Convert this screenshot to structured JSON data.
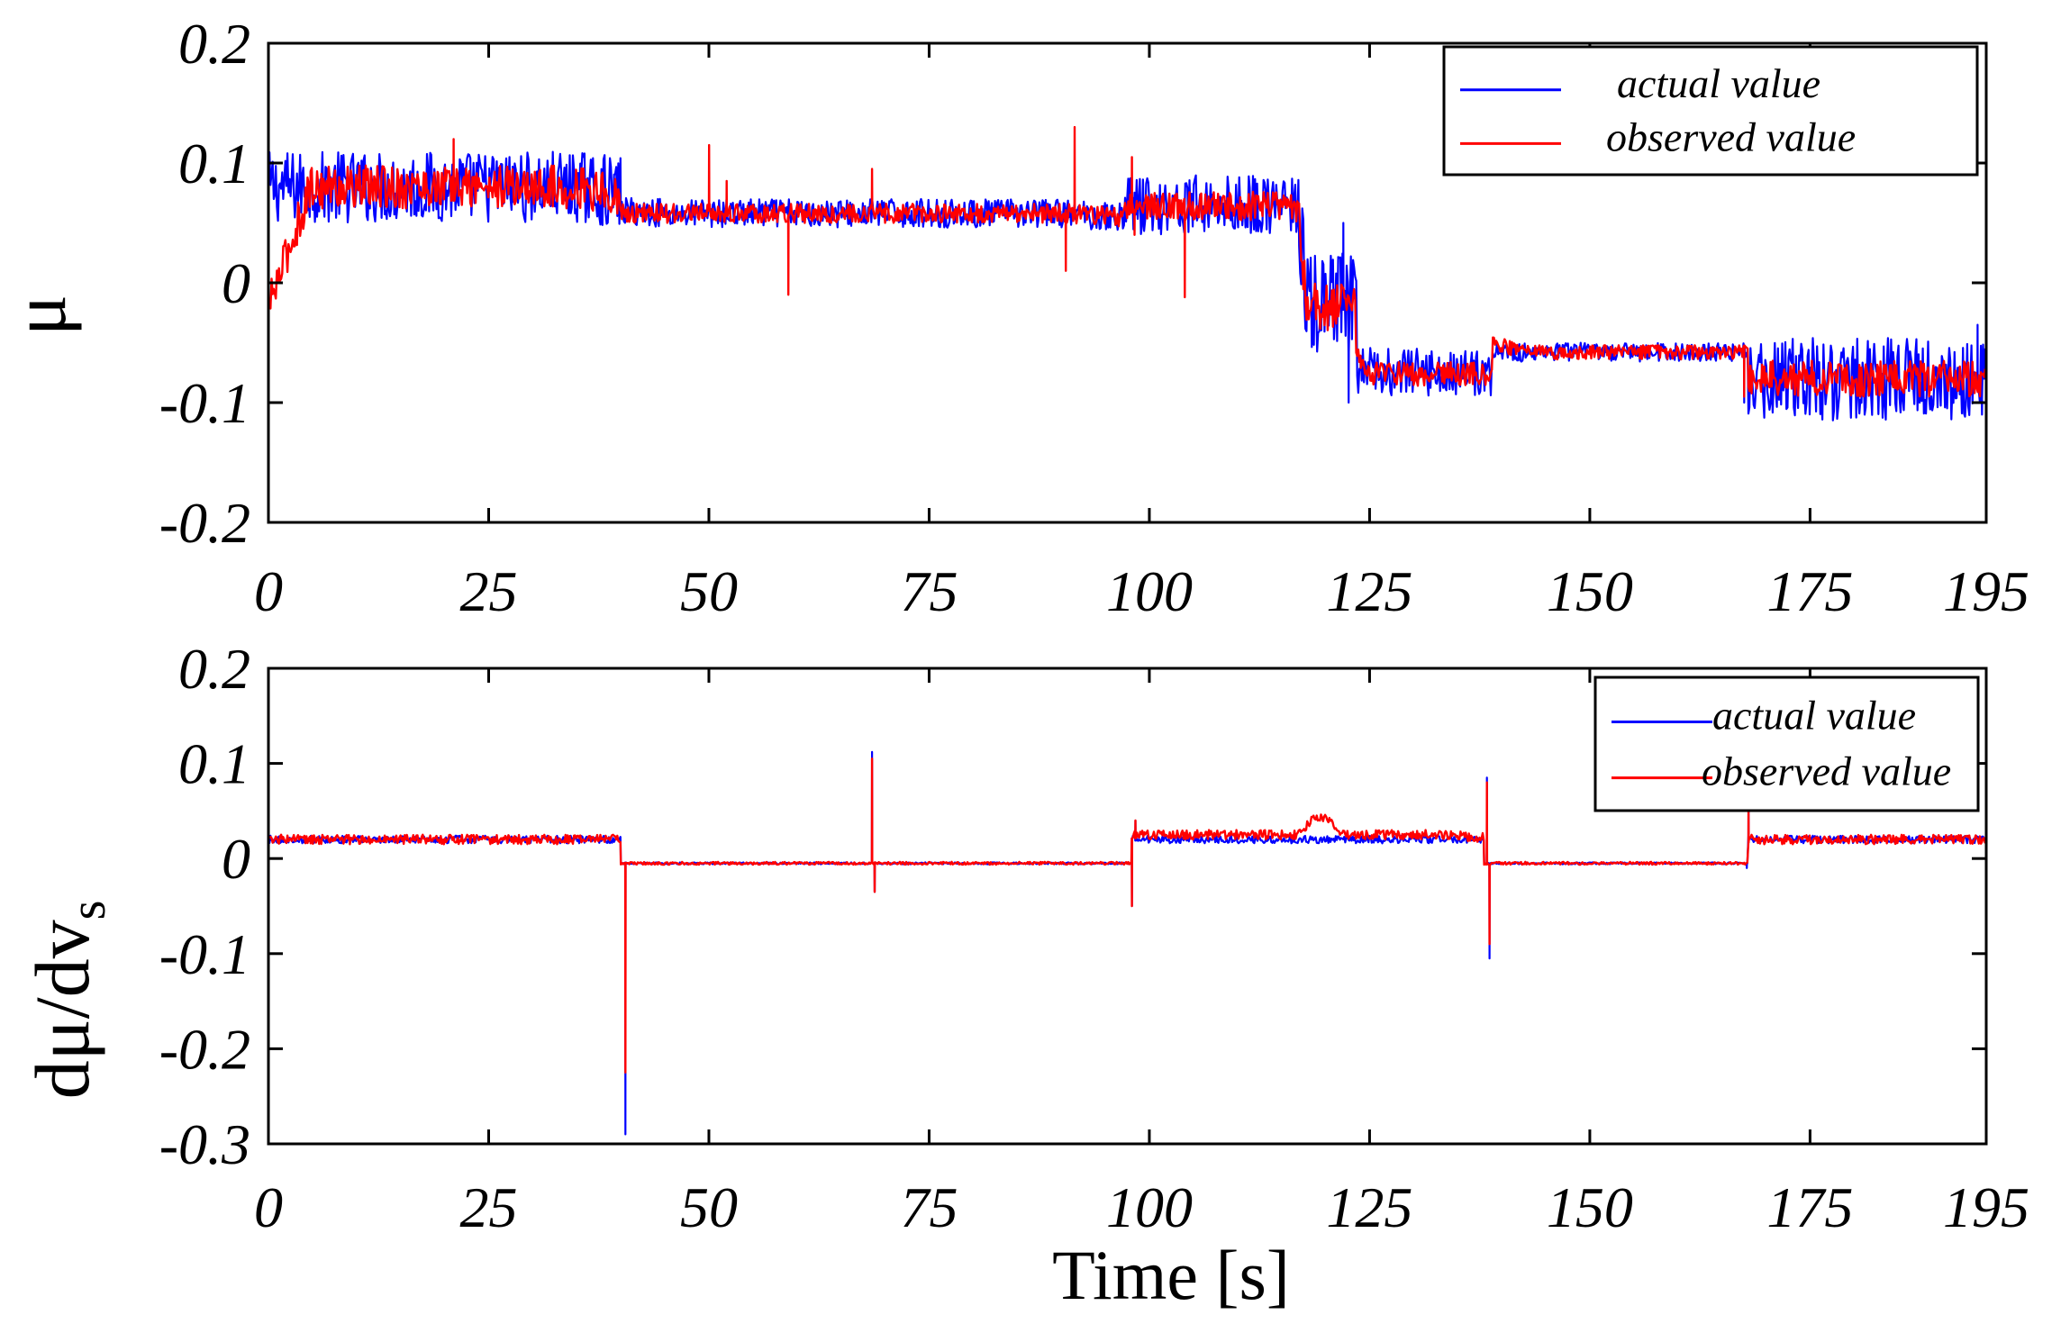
{
  "chart_data": [
    {
      "type": "line",
      "id": "friction-coefficient",
      "ylabel": "μ",
      "xlabel": "",
      "xlim": [
        0,
        195
      ],
      "ylim": [
        -0.2,
        0.2
      ],
      "x_ticks": [
        0,
        25,
        50,
        75,
        100,
        125,
        150,
        175,
        195
      ],
      "x_tick_labels": [
        "0",
        "25",
        "50",
        "75",
        "100",
        "125",
        "150",
        "175",
        "195"
      ],
      "y_ticks": [
        0.2,
        0.1,
        0,
        -0.1,
        -0.2
      ],
      "y_tick_labels": [
        "0.2",
        "0.1",
        "0",
        "-0.1",
        "-0.2"
      ],
      "legend": [
        "actual value",
        "observed value"
      ],
      "legend_position": "top-right",
      "colors": {
        "actual": "#0000ff",
        "observed": "#ff0000",
        "axes": "#000000"
      },
      "series": [
        {
          "name": "actual value",
          "segments": [
            {
              "x0": 0,
              "x1": 40,
              "start": 0.08,
              "level": 0.08,
              "end": 0.075,
              "noise": 0.03
            },
            {
              "x0": 40,
              "x1": 97,
              "start": 0.06,
              "level": 0.058,
              "end": 0.055,
              "noise": 0.012
            },
            {
              "x0": 97,
              "x1": 117,
              "start": 0.068,
              "level": 0.065,
              "end": 0.062,
              "noise": 0.025
            },
            {
              "x0": 117,
              "x1": 124,
              "start": 0.06,
              "level": -0.02,
              "end": -0.07,
              "noise": 0.045
            },
            {
              "x0": 124,
              "x1": 139,
              "start": -0.07,
              "level": -0.075,
              "end": -0.075,
              "noise": 0.02
            },
            {
              "x0": 139,
              "x1": 168,
              "start": -0.057,
              "level": -0.058,
              "end": -0.058,
              "noise": 0.008
            },
            {
              "x0": 168,
              "x1": 195,
              "start": -0.08,
              "level": -0.08,
              "end": -0.08,
              "noise": 0.035
            }
          ],
          "spikes": [
            [
              122,
              0.05
            ],
            [
              122.6,
              -0.1
            ],
            [
              167.5,
              -0.1
            ],
            [
              194,
              -0.035
            ],
            [
              194.5,
              -0.11
            ]
          ]
        },
        {
          "name": "observed value",
          "segments": [
            {
              "x0": 0,
              "x1": 40,
              "start": -0.02,
              "level": 0.08,
              "end": 0.072,
              "noise": 0.018
            },
            {
              "x0": 40,
              "x1": 97,
              "start": 0.058,
              "level": 0.058,
              "end": 0.055,
              "noise": 0.008
            },
            {
              "x0": 97,
              "x1": 117,
              "start": 0.065,
              "level": 0.064,
              "end": 0.062,
              "noise": 0.012
            },
            {
              "x0": 117,
              "x1": 124,
              "start": 0.06,
              "level": -0.02,
              "end": -0.072,
              "noise": 0.02
            },
            {
              "x0": 124,
              "x1": 139,
              "start": -0.072,
              "level": -0.076,
              "end": -0.075,
              "noise": 0.01
            },
            {
              "x0": 139,
              "x1": 168,
              "start": -0.05,
              "level": -0.058,
              "end": -0.058,
              "noise": 0.006
            },
            {
              "x0": 168,
              "x1": 195,
              "start": -0.08,
              "level": -0.08,
              "end": -0.08,
              "noise": 0.015
            }
          ],
          "spikes": [
            [
              21,
              0.12
            ],
            [
              50,
              0.115
            ],
            [
              52,
              0.085
            ],
            [
              59,
              -0.01
            ],
            [
              68.5,
              0.095
            ],
            [
              90.5,
              0.01
            ],
            [
              91.5,
              0.13
            ],
            [
              98,
              0.105
            ],
            [
              98.3,
              0.04
            ],
            [
              104,
              -0.012
            ],
            [
              167.5,
              -0.095
            ]
          ]
        }
      ]
    },
    {
      "type": "line",
      "id": "friction-slope",
      "ylabel": "dμ/dv",
      "ylabel_subscript": "s",
      "xlabel": "Time [s]",
      "xlim": [
        0,
        195
      ],
      "ylim": [
        -0.3,
        0.2
      ],
      "x_ticks": [
        0,
        25,
        50,
        75,
        100,
        125,
        150,
        175,
        195
      ],
      "x_tick_labels": [
        "0",
        "25",
        "50",
        "75",
        "100",
        "125",
        "150",
        "175",
        "195"
      ],
      "y_ticks": [
        0.2,
        0.1,
        0,
        -0.1,
        -0.2,
        -0.3
      ],
      "y_tick_labels": [
        "0.2",
        "0.1",
        "0",
        "-0.1",
        "-0.2",
        "-0.3"
      ],
      "legend": [
        "actual value",
        "observed value"
      ],
      "legend_position": "top-right",
      "colors": {
        "actual": "#0000ff",
        "observed": "#ff0000",
        "axes": "#000000"
      },
      "series": [
        {
          "name": "actual value",
          "segments": [
            {
              "x0": 0,
              "x1": 40,
              "start": 0.02,
              "level": 0.02,
              "end": 0.02,
              "noise": 0.004
            },
            {
              "x0": 40,
              "x1": 98,
              "start": -0.005,
              "level": -0.005,
              "end": -0.005,
              "noise": 0.001
            },
            {
              "x0": 98,
              "x1": 138,
              "start": 0.02,
              "level": 0.02,
              "end": 0.02,
              "noise": 0.004
            },
            {
              "x0": 138,
              "x1": 168,
              "start": -0.005,
              "level": -0.005,
              "end": -0.005,
              "noise": 0.001
            },
            {
              "x0": 168,
              "x1": 195,
              "start": 0.02,
              "level": 0.02,
              "end": 0.02,
              "noise": 0.004
            }
          ],
          "spikes": [
            [
              40.5,
              -0.29
            ],
            [
              68.5,
              0.112
            ],
            [
              68.8,
              -0.035
            ],
            [
              98,
              -0.05
            ],
            [
              98.4,
              0.04
            ],
            [
              138.3,
              0.085
            ],
            [
              138.6,
              -0.105
            ],
            [
              168,
              0.06
            ],
            [
              167.8,
              -0.01
            ]
          ]
        },
        {
          "name": "observed value",
          "segments": [
            {
              "x0": 0,
              "x1": 40,
              "start": 0.02,
              "level": 0.02,
              "end": 0.022,
              "noise": 0.005
            },
            {
              "x0": 40,
              "x1": 98,
              "start": -0.005,
              "level": -0.005,
              "end": -0.005,
              "noise": 0.0015
            },
            {
              "x0": 98,
              "x1": 138,
              "start": 0.025,
              "level": 0.025,
              "end": 0.022,
              "noise": 0.005
            },
            {
              "x0": 138,
              "x1": 168,
              "start": -0.005,
              "level": -0.005,
              "end": -0.005,
              "noise": 0.0015
            },
            {
              "x0": 168,
              "x1": 195,
              "start": 0.02,
              "level": 0.02,
              "end": 0.02,
              "noise": 0.005
            }
          ],
          "spikes": [
            [
              40.5,
              -0.225
            ],
            [
              68.5,
              0.105
            ],
            [
              68.8,
              -0.035
            ],
            [
              98,
              -0.05
            ],
            [
              98.4,
              0.04
            ],
            [
              138.3,
              0.08
            ],
            [
              138.6,
              -0.09
            ],
            [
              168,
              0.05
            ]
          ],
          "bumps": [
            [
              119.5,
              0.018,
              2.5
            ]
          ]
        }
      ]
    }
  ]
}
